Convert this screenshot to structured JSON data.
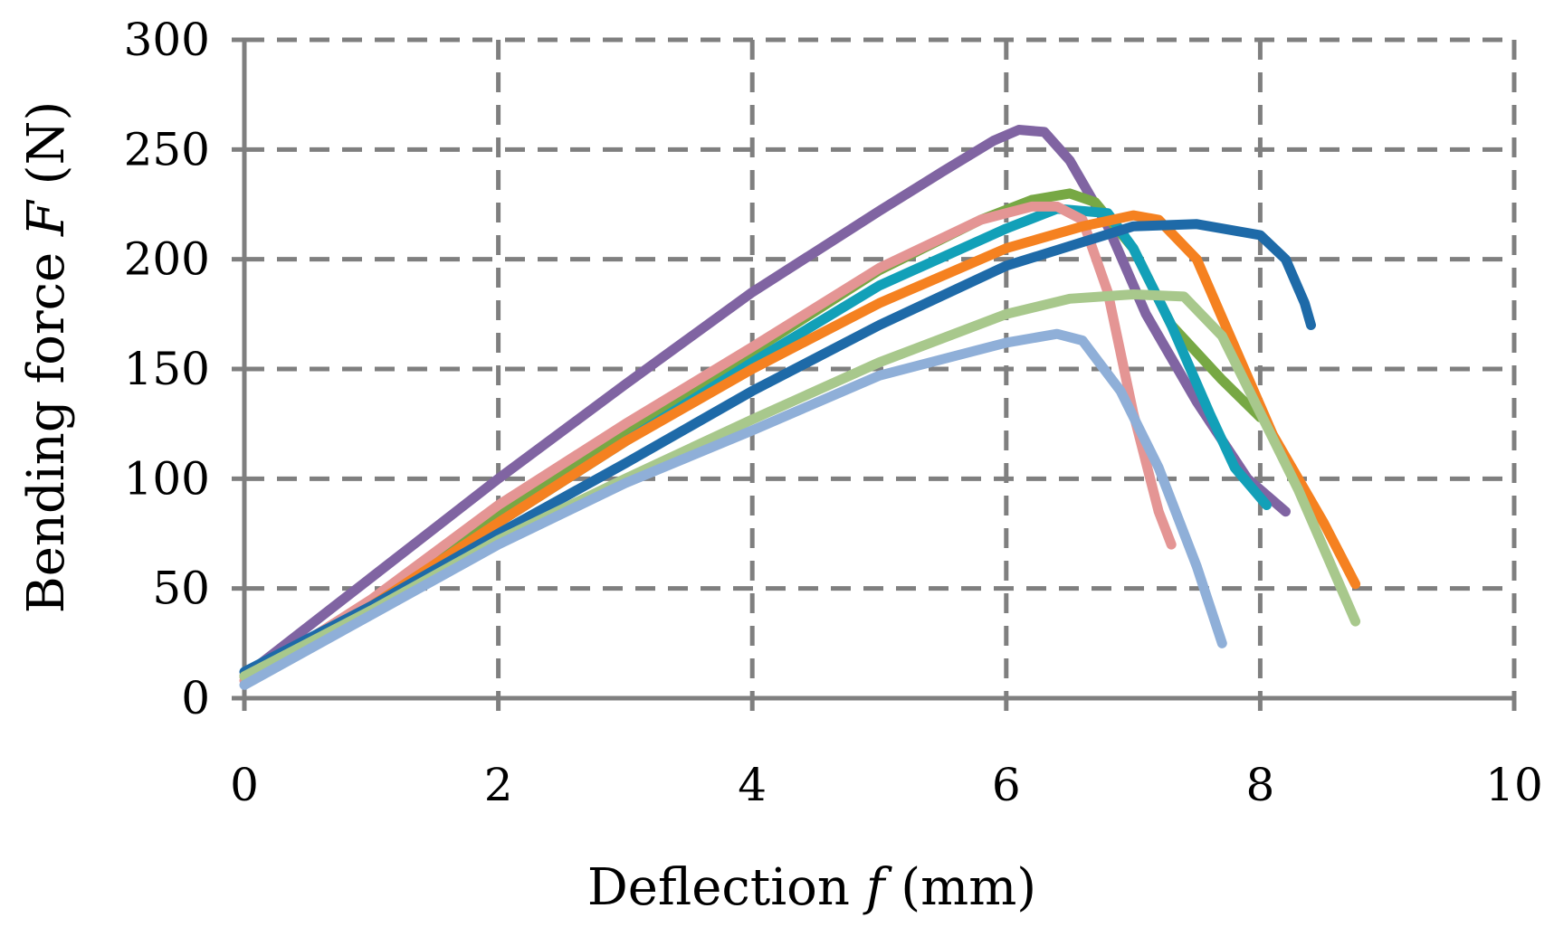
{
  "chart_data": {
    "type": "line",
    "title": "",
    "xlabel": {
      "prefix": "Deflection ",
      "symbol": "f",
      "suffix": "  (mm)"
    },
    "ylabel": {
      "prefix": "Bending force ",
      "symbol": "F",
      "suffix": "  (N)"
    },
    "xlim": [
      0,
      10
    ],
    "ylim": [
      0,
      300
    ],
    "xticks": [
      0,
      2,
      4,
      6,
      8,
      10
    ],
    "yticks": [
      0,
      50,
      100,
      150,
      200,
      250,
      300
    ],
    "xtick_labels": [
      "0",
      "2",
      "4",
      "6",
      "8",
      "10"
    ],
    "ytick_labels": [
      "0",
      "50",
      "100",
      "150",
      "200",
      "250",
      "300"
    ],
    "grid": true,
    "legend": "none",
    "colors": {
      "grid": "#7f7f7f",
      "axis": "#7f7f7f",
      "text": "#000000"
    },
    "series": [
      {
        "name": "series-purple",
        "color": "#8064a2",
        "x": [
          0.0,
          1.0,
          2.0,
          3.0,
          4.0,
          5.0,
          5.5,
          5.9,
          6.1,
          6.3,
          6.5,
          6.8,
          7.1,
          7.5,
          7.9,
          8.2
        ],
        "y": [
          10,
          55,
          100,
          143,
          185,
          222,
          240,
          254,
          259,
          258,
          245,
          215,
          175,
          135,
          100,
          85
        ]
      },
      {
        "name": "series-green",
        "color": "#77a844",
        "x": [
          0.0,
          1.0,
          2.0,
          3.0,
          4.0,
          5.0,
          5.8,
          6.2,
          6.5,
          6.7,
          7.0,
          7.3,
          7.7,
          8.0
        ],
        "y": [
          10,
          43,
          83,
          120,
          158,
          195,
          218,
          227,
          230,
          226,
          205,
          170,
          145,
          128
        ]
      },
      {
        "name": "series-teal",
        "color": "#12a0b8",
        "x": [
          0.0,
          1.0,
          2.0,
          3.0,
          4.0,
          5.0,
          6.0,
          6.4,
          6.8,
          7.0,
          7.3,
          7.6,
          7.8,
          8.05
        ],
        "y": [
          10,
          42,
          80,
          117,
          153,
          188,
          214,
          223,
          221,
          205,
          170,
          130,
          105,
          88
        ]
      },
      {
        "name": "series-pink",
        "color": "#e49594",
        "x": [
          0.0,
          1.0,
          2.0,
          3.0,
          4.0,
          5.0,
          5.8,
          6.2,
          6.4,
          6.6,
          6.8,
          7.0,
          7.2,
          7.3
        ],
        "y": [
          8,
          45,
          88,
          125,
          160,
          196,
          218,
          224,
          224,
          218,
          185,
          130,
          85,
          70
        ]
      },
      {
        "name": "series-orange",
        "color": "#f58120",
        "x": [
          0.0,
          1.0,
          2.0,
          3.0,
          4.0,
          5.0,
          6.0,
          6.6,
          7.0,
          7.2,
          7.5,
          7.8,
          8.1,
          8.5,
          8.75
        ],
        "y": [
          10,
          42,
          80,
          117,
          150,
          180,
          205,
          215,
          220,
          218,
          200,
          160,
          120,
          80,
          52
        ]
      },
      {
        "name": "series-blue",
        "color": "#1e6aa8",
        "x": [
          0.0,
          1.0,
          2.0,
          3.0,
          4.0,
          5.0,
          6.0,
          7.0,
          7.5,
          8.0,
          8.2,
          8.35,
          8.4
        ],
        "y": [
          12,
          42,
          75,
          107,
          140,
          170,
          197,
          215,
          216,
          211,
          200,
          180,
          170
        ]
      },
      {
        "name": "series-lightgreen",
        "color": "#a8c88c",
        "x": [
          0.0,
          1.0,
          2.0,
          3.0,
          4.0,
          5.0,
          6.0,
          6.5,
          7.0,
          7.4,
          7.7,
          8.0,
          8.3,
          8.6,
          8.75
        ],
        "y": [
          10,
          40,
          72,
          100,
          127,
          153,
          175,
          182,
          184,
          183,
          165,
          130,
          95,
          55,
          35
        ]
      },
      {
        "name": "series-lightblue",
        "color": "#8fafd8",
        "x": [
          0.0,
          1.0,
          2.0,
          3.0,
          4.0,
          5.0,
          6.0,
          6.4,
          6.6,
          6.9,
          7.2,
          7.5,
          7.7
        ],
        "y": [
          6,
          38,
          70,
          98,
          122,
          147,
          162,
          166,
          163,
          140,
          105,
          60,
          25
        ]
      }
    ]
  }
}
